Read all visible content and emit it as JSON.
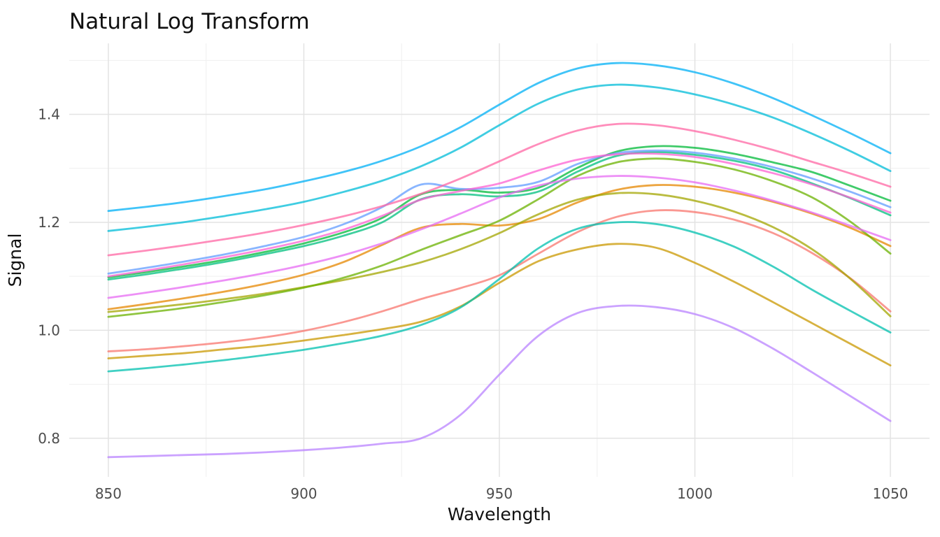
{
  "title": "Natural Log Transform",
  "axes": {
    "x": {
      "label": "Wavelength",
      "ticks": [
        850,
        900,
        950,
        1000,
        1050
      ],
      "tick_labels": [
        "850",
        "900",
        "950",
        "1000",
        "1050"
      ],
      "minor_ticks": [
        875,
        925,
        975,
        1025
      ],
      "range": [
        840,
        1060
      ]
    },
    "y": {
      "label": "Signal",
      "ticks": [
        0.8,
        1.0,
        1.2,
        1.4
      ],
      "tick_labels": [
        "0.8",
        "1.0",
        "1.2",
        "1.4"
      ],
      "minor_ticks": [
        0.9,
        1.1,
        1.3,
        1.5
      ],
      "range": [
        0.7285,
        1.5315
      ]
    }
  },
  "style": {
    "background": "#ffffff",
    "grid_major_color": "#e3e3e3",
    "grid_minor_color": "#efefef",
    "grid_major_width": 1.5,
    "grid_minor_width": 1.0,
    "tick_label_color": "#4d4d4d",
    "title_color": "#111111",
    "line_width": 2.8,
    "line_opacity": 0.75
  },
  "chart_data": {
    "type": "line",
    "title": "Natural Log Transform",
    "xlabel": "Wavelength",
    "ylabel": "Signal",
    "xlim": [
      840,
      1060
    ],
    "ylim": [
      0.7285,
      1.5315
    ],
    "grid": true,
    "legend_position": "none",
    "x": [
      850,
      860,
      870,
      880,
      890,
      900,
      910,
      920,
      930,
      940,
      950,
      960,
      970,
      980,
      990,
      1000,
      1010,
      1020,
      1030,
      1040,
      1050
    ],
    "series": [
      {
        "name": "salmon",
        "color": "#F8766D",
        "values": [
          0.961,
          0.965,
          0.971,
          0.978,
          0.987,
          0.999,
          1.015,
          1.035,
          1.058,
          1.078,
          1.102,
          1.142,
          1.182,
          1.21,
          1.222,
          1.219,
          1.205,
          1.18,
          1.143,
          1.095,
          1.035
        ]
      },
      {
        "name": "orange",
        "color": "#E58700",
        "values": [
          1.039,
          1.049,
          1.06,
          1.072,
          1.086,
          1.103,
          1.126,
          1.158,
          1.19,
          1.197,
          1.194,
          1.206,
          1.237,
          1.26,
          1.269,
          1.266,
          1.255,
          1.238,
          1.216,
          1.189,
          1.156
        ]
      },
      {
        "name": "mustard",
        "color": "#C99800",
        "values": [
          0.948,
          0.953,
          0.958,
          0.965,
          0.972,
          0.981,
          0.991,
          1.002,
          1.016,
          1.044,
          1.088,
          1.128,
          1.15,
          1.16,
          1.153,
          1.125,
          1.09,
          1.052,
          1.013,
          0.974,
          0.935
        ]
      },
      {
        "name": "olive",
        "color": "#A3A500",
        "values": [
          1.034,
          1.041,
          1.049,
          1.058,
          1.068,
          1.08,
          1.093,
          1.108,
          1.126,
          1.15,
          1.18,
          1.215,
          1.242,
          1.254,
          1.252,
          1.24,
          1.22,
          1.191,
          1.15,
          1.094,
          1.026
        ]
      },
      {
        "name": "apple-green",
        "color": "#6BB100",
        "values": [
          1.025,
          1.033,
          1.042,
          1.053,
          1.065,
          1.079,
          1.097,
          1.12,
          1.149,
          1.176,
          1.203,
          1.243,
          1.286,
          1.311,
          1.318,
          1.312,
          1.298,
          1.276,
          1.246,
          1.2,
          1.142
        ]
      },
      {
        "name": "green",
        "color": "#00BA38",
        "values": [
          1.098,
          1.108,
          1.119,
          1.131,
          1.145,
          1.161,
          1.181,
          1.208,
          1.252,
          1.26,
          1.255,
          1.264,
          1.301,
          1.331,
          1.341,
          1.338,
          1.327,
          1.311,
          1.293,
          1.267,
          1.24
        ]
      },
      {
        "name": "emerald",
        "color": "#00BF7D",
        "values": [
          1.094,
          1.104,
          1.115,
          1.127,
          1.141,
          1.156,
          1.175,
          1.2,
          1.243,
          1.252,
          1.248,
          1.257,
          1.294,
          1.323,
          1.33,
          1.325,
          1.314,
          1.297,
          1.272,
          1.244,
          1.213
        ]
      },
      {
        "name": "teal",
        "color": "#00C0AF",
        "values": [
          0.924,
          0.93,
          0.937,
          0.945,
          0.954,
          0.964,
          0.976,
          0.99,
          1.01,
          1.042,
          1.095,
          1.152,
          1.188,
          1.2,
          1.197,
          1.181,
          1.155,
          1.118,
          1.075,
          1.035,
          0.996
        ]
      },
      {
        "name": "cyan",
        "color": "#00BCD8",
        "values": [
          1.184,
          1.192,
          1.201,
          1.212,
          1.224,
          1.238,
          1.256,
          1.277,
          1.304,
          1.338,
          1.38,
          1.42,
          1.446,
          1.455,
          1.45,
          1.437,
          1.418,
          1.394,
          1.364,
          1.331,
          1.295
        ]
      },
      {
        "name": "sky-blue",
        "color": "#00B0F6",
        "values": [
          1.221,
          1.229,
          1.238,
          1.249,
          1.261,
          1.276,
          1.293,
          1.314,
          1.341,
          1.376,
          1.418,
          1.458,
          1.485,
          1.495,
          1.491,
          1.478,
          1.457,
          1.43,
          1.398,
          1.364,
          1.328
        ]
      },
      {
        "name": "cornflower",
        "color": "#619CFF",
        "values": [
          1.105,
          1.116,
          1.128,
          1.141,
          1.156,
          1.173,
          1.196,
          1.228,
          1.27,
          1.262,
          1.264,
          1.275,
          1.308,
          1.328,
          1.333,
          1.329,
          1.318,
          1.302,
          1.281,
          1.256,
          1.228
        ]
      },
      {
        "name": "lavender",
        "color": "#B983FF",
        "values": [
          0.765,
          0.767,
          0.769,
          0.771,
          0.774,
          0.778,
          0.783,
          0.79,
          0.8,
          0.843,
          0.918,
          0.99,
          1.032,
          1.045,
          1.043,
          1.03,
          1.004,
          0.966,
          0.922,
          0.877,
          0.832
        ]
      },
      {
        "name": "violet",
        "color": "#E76BF3",
        "values": [
          1.06,
          1.07,
          1.081,
          1.093,
          1.106,
          1.121,
          1.139,
          1.161,
          1.187,
          1.216,
          1.246,
          1.268,
          1.281,
          1.286,
          1.283,
          1.274,
          1.259,
          1.24,
          1.218,
          1.193,
          1.167
        ]
      },
      {
        "name": "magenta",
        "color": "#FD61D1",
        "values": [
          1.1,
          1.111,
          1.123,
          1.136,
          1.15,
          1.166,
          1.186,
          1.212,
          1.242,
          1.258,
          1.272,
          1.296,
          1.316,
          1.326,
          1.327,
          1.321,
          1.308,
          1.291,
          1.27,
          1.245,
          1.218
        ]
      },
      {
        "name": "pink",
        "color": "#FF67A4",
        "values": [
          1.139,
          1.148,
          1.158,
          1.169,
          1.181,
          1.195,
          1.211,
          1.23,
          1.253,
          1.281,
          1.313,
          1.345,
          1.37,
          1.382,
          1.38,
          1.369,
          1.353,
          1.334,
          1.312,
          1.29,
          1.266
        ]
      }
    ]
  }
}
